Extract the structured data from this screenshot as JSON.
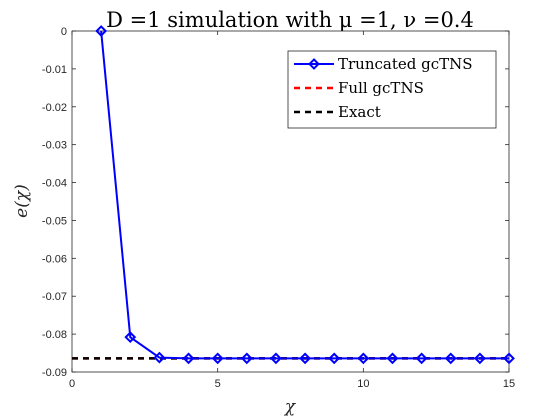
{
  "chart_data": {
    "type": "line",
    "title": "D =1 simulation with μ =1, ν =0.4",
    "xlabel": "χ",
    "ylabel": "e(χ)",
    "xlim": [
      0,
      15
    ],
    "ylim": [
      -0.09,
      0
    ],
    "xticks": [
      0,
      5,
      10,
      15
    ],
    "xtick_labels": [
      "0",
      "5",
      "10",
      "15"
    ],
    "yticks": [
      0,
      -0.01,
      -0.02,
      -0.03,
      -0.04,
      -0.05,
      -0.06,
      -0.07,
      -0.08,
      -0.09
    ],
    "ytick_labels": [
      "0",
      "-0.01",
      "-0.02",
      "-0.03",
      "-0.04",
      "-0.05",
      "-0.06",
      "-0.07",
      "-0.08",
      "-0.09"
    ],
    "grid": false,
    "legend_position": "top-right",
    "series": [
      {
        "name": "Truncated gcTNS",
        "color": "#0000ff",
        "style": "solid",
        "marker": "diamond",
        "x": [
          1,
          2,
          3,
          4,
          5,
          6,
          7,
          8,
          9,
          10,
          11,
          12,
          13,
          14,
          15
        ],
        "y": [
          0,
          -0.0808,
          -0.0862,
          -0.0864,
          -0.0864,
          -0.0864,
          -0.0864,
          -0.0864,
          -0.0864,
          -0.0864,
          -0.0864,
          -0.0864,
          -0.0864,
          -0.0864,
          -0.0864
        ]
      },
      {
        "name": "Full gcTNS",
        "color": "#ff0000",
        "style": "dashed",
        "marker": "none",
        "x": [
          0,
          15
        ],
        "y": [
          -0.0864,
          -0.0864
        ]
      },
      {
        "name": "Exact",
        "color": "#000000",
        "style": "dashed",
        "marker": "none",
        "x": [
          0,
          15
        ],
        "y": [
          -0.0864,
          -0.0864
        ]
      }
    ]
  }
}
